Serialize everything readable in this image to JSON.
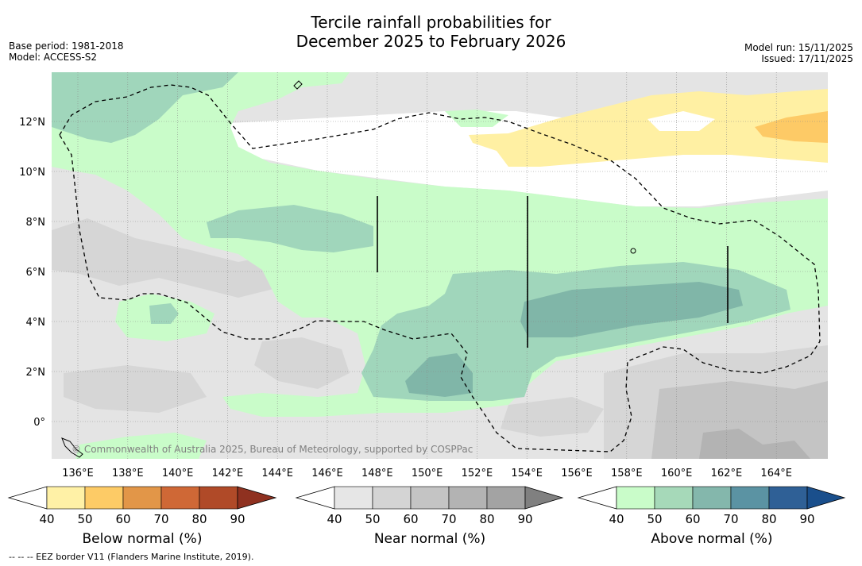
{
  "title": {
    "line1": "Tercile rainfall probabilities for",
    "line2": "December 2025 to February 2026"
  },
  "meta_left": {
    "base_period": "Base period: 1981-2018",
    "model": "Model: ACCESS-S2"
  },
  "meta_right": {
    "model_run": "Model run: 15/11/2025",
    "issued": "Issued: 17/11/2025"
  },
  "map": {
    "lat_labels": [
      "12°N",
      "10°N",
      "8°N",
      "6°N",
      "4°N",
      "2°N",
      "0°"
    ],
    "lon_labels": [
      "136°E",
      "138°E",
      "140°E",
      "142°E",
      "144°E",
      "146°E",
      "148°E",
      "150°E",
      "152°E",
      "154°E",
      "156°E",
      "158°E",
      "160°E",
      "162°E",
      "164°E"
    ],
    "copyright": "© Commonwealth of Australia 2025, Bureau of Meteorology, supported by COSPPac"
  },
  "colorbars": [
    {
      "title": "Below normal (%)",
      "ticks": [
        "40",
        "50",
        "60",
        "70",
        "80",
        "90"
      ],
      "colors": [
        "#fff1a6",
        "#fdcb66",
        "#e29648",
        "#cf6836",
        "#b04a28",
        "#8f3120"
      ]
    },
    {
      "title": "Near normal (%)",
      "ticks": [
        "40",
        "50",
        "60",
        "70",
        "80",
        "90"
      ],
      "colors": [
        "#e6e6e6",
        "#d4d4d4",
        "#c4c4c4",
        "#b3b3b3",
        "#a3a3a3",
        "#808080"
      ]
    },
    {
      "title": "Above normal (%)",
      "ticks": [
        "40",
        "50",
        "60",
        "70",
        "80",
        "90"
      ],
      "colors": [
        "#c9fcc9",
        "#a6d9b9",
        "#84b7ac",
        "#5b93a3",
        "#2f6096",
        "#1a4f8c"
      ]
    }
  ],
  "footer": "--  --  -- EEZ border V11 (Flanders Marine Institute, 2019)."
}
